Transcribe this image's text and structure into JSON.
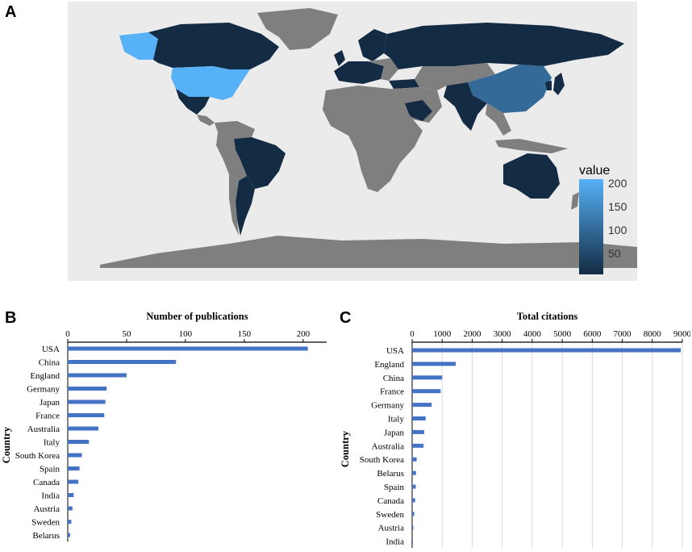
{
  "panels": {
    "a_label": "A",
    "b_label": "B",
    "c_label": "C"
  },
  "map": {
    "legend_title": "value",
    "legend_ticks": [
      "200",
      "150",
      "100",
      "50"
    ],
    "colors": {
      "background": "#ebebeb",
      "no_data": "#7f7f7f",
      "low": "#132b43",
      "high": "#56b1f7",
      "ocean": "#ebebeb"
    }
  },
  "chart_data": [
    {
      "type": "bar",
      "orientation": "horizontal",
      "title": "Number of publications",
      "ylabel": "Country",
      "categories": [
        "USA",
        "China",
        "England",
        "Germany",
        "Japan",
        "France",
        "Australia",
        "Italy",
        "South Korea",
        "Spain",
        "Canada",
        "India",
        "Austria",
        "Sweden",
        "Belarus"
      ],
      "values": [
        204,
        92,
        50,
        33,
        32,
        31,
        26,
        18,
        12,
        10,
        9,
        5,
        4,
        3,
        2
      ],
      "xlim": [
        0,
        220
      ],
      "xticks": [
        "0",
        "50",
        "100",
        "150",
        "200"
      ],
      "xtick_values": [
        0,
        50,
        100,
        150,
        200
      ],
      "color": "#4472c4",
      "axis_position": "top",
      "grid": false
    },
    {
      "type": "bar",
      "orientation": "horizontal",
      "title": "Total citations",
      "ylabel": "Country",
      "categories": [
        "USA",
        "England",
        "China",
        "France",
        "Germany",
        "Italy",
        "Japan",
        "Australia",
        "South Korea",
        "Belarus",
        "Spain",
        "Canada",
        "Sweden",
        "Austria",
        "India"
      ],
      "values": [
        8950,
        1450,
        1000,
        950,
        650,
        450,
        400,
        380,
        150,
        130,
        120,
        100,
        70,
        40,
        20
      ],
      "xlim": [
        0,
        9000
      ],
      "xticks": [
        "0",
        "1000",
        "2000",
        "3000",
        "4000",
        "5000",
        "6000",
        "7000",
        "8000",
        "9000"
      ],
      "xtick_values": [
        0,
        1000,
        2000,
        3000,
        4000,
        5000,
        6000,
        7000,
        8000,
        9000
      ],
      "color": "#4472c4",
      "axis_position": "top",
      "grid": true
    }
  ]
}
